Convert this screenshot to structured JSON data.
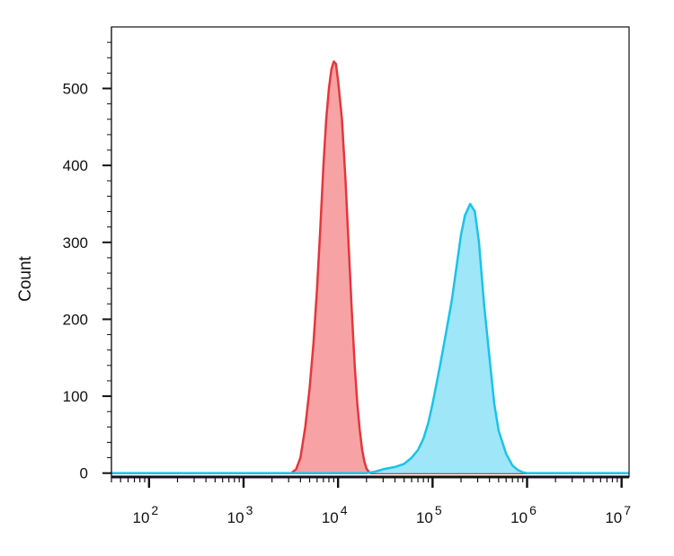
{
  "chart_data": {
    "type": "area",
    "title": "",
    "xlabel": "",
    "ylabel": "Count",
    "x_scale": "log",
    "xlim": [
      40,
      12000000
    ],
    "ylim": [
      -5,
      580
    ],
    "x_ticks": [
      {
        "value": 100,
        "base": "10",
        "exp": "2"
      },
      {
        "value": 1000,
        "base": "10",
        "exp": "3"
      },
      {
        "value": 10000,
        "base": "10",
        "exp": "4"
      },
      {
        "value": 100000,
        "base": "10",
        "exp": "5"
      },
      {
        "value": 1000000,
        "base": "10",
        "exp": "6"
      },
      {
        "value": 10000000,
        "base": "10",
        "exp": "7"
      }
    ],
    "y_ticks": [
      {
        "value": 0,
        "label": "0"
      },
      {
        "value": 100,
        "label": "100"
      },
      {
        "value": 200,
        "label": "200"
      },
      {
        "value": 300,
        "label": "300"
      },
      {
        "value": 400,
        "label": "400"
      },
      {
        "value": 500,
        "label": "500"
      }
    ],
    "grid": false,
    "series": [
      {
        "color": "#e8353a",
        "fill": "#f7a3a6",
        "points": [
          [
            40,
            0
          ],
          [
            3200,
            0
          ],
          [
            3600,
            5
          ],
          [
            4000,
            20
          ],
          [
            4500,
            60
          ],
          [
            5000,
            110
          ],
          [
            5500,
            170
          ],
          [
            6000,
            240
          ],
          [
            6500,
            320
          ],
          [
            7000,
            400
          ],
          [
            7500,
            460
          ],
          [
            8000,
            500
          ],
          [
            8500,
            525
          ],
          [
            9000,
            535
          ],
          [
            9500,
            532
          ],
          [
            10000,
            510
          ],
          [
            11000,
            460
          ],
          [
            12000,
            380
          ],
          [
            13000,
            290
          ],
          [
            14000,
            210
          ],
          [
            15000,
            140
          ],
          [
            16000,
            90
          ],
          [
            17000,
            55
          ],
          [
            18000,
            30
          ],
          [
            19000,
            15
          ],
          [
            20000,
            6
          ],
          [
            21000,
            2
          ],
          [
            22000,
            0
          ],
          [
            12000000,
            0
          ]
        ]
      },
      {
        "color": "#19c3ec",
        "fill": "#9ee6f8",
        "points": [
          [
            40,
            0
          ],
          [
            20000,
            0
          ],
          [
            25000,
            2
          ],
          [
            30000,
            5
          ],
          [
            40000,
            8
          ],
          [
            50000,
            12
          ],
          [
            60000,
            20
          ],
          [
            70000,
            30
          ],
          [
            80000,
            45
          ],
          [
            90000,
            65
          ],
          [
            100000,
            90
          ],
          [
            120000,
            140
          ],
          [
            140000,
            185
          ],
          [
            160000,
            225
          ],
          [
            180000,
            270
          ],
          [
            200000,
            310
          ],
          [
            220000,
            335
          ],
          [
            250000,
            350
          ],
          [
            280000,
            340
          ],
          [
            310000,
            300
          ],
          [
            350000,
            220
          ],
          [
            400000,
            150
          ],
          [
            450000,
            90
          ],
          [
            500000,
            55
          ],
          [
            600000,
            25
          ],
          [
            700000,
            10
          ],
          [
            800000,
            4
          ],
          [
            900000,
            1
          ],
          [
            1000000,
            0
          ],
          [
            12000000,
            0
          ]
        ]
      }
    ]
  }
}
